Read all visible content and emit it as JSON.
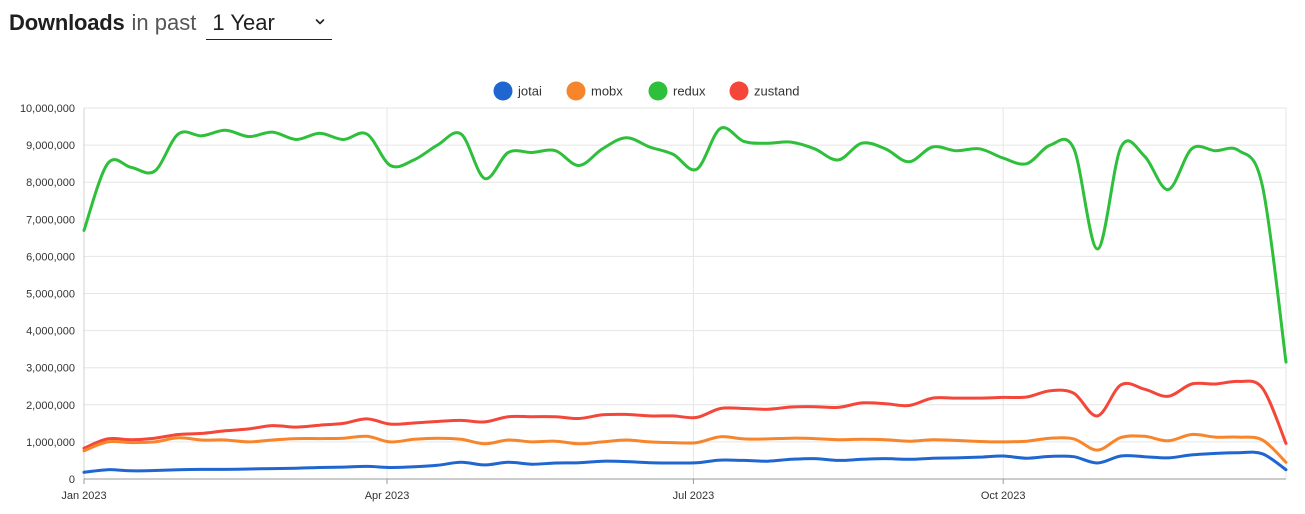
{
  "header": {
    "title": "Downloads",
    "subtitle": "in past",
    "range_value": "1 Year"
  },
  "chart_data": {
    "type": "line",
    "title": "",
    "xlabel": "",
    "ylabel": "",
    "ylim": [
      0,
      10000000
    ],
    "yticks": [
      "0",
      "1,000,000",
      "2,000,000",
      "3,000,000",
      "4,000,000",
      "5,000,000",
      "6,000,000",
      "7,000,000",
      "8,000,000",
      "9,000,000",
      "10,000,000"
    ],
    "xticks": [
      "Jan 2023",
      "Apr 2023",
      "Jul 2023",
      "Oct 2023"
    ],
    "legend_position": "top-center",
    "grid": true,
    "x": [
      "2023-01-01",
      "2023-01-08",
      "2023-01-15",
      "2023-01-22",
      "2023-01-29",
      "2023-02-05",
      "2023-02-12",
      "2023-02-19",
      "2023-02-26",
      "2023-03-05",
      "2023-03-12",
      "2023-03-19",
      "2023-03-26",
      "2023-04-02",
      "2023-04-09",
      "2023-04-16",
      "2023-04-23",
      "2023-04-30",
      "2023-05-07",
      "2023-05-14",
      "2023-05-21",
      "2023-05-28",
      "2023-06-04",
      "2023-06-11",
      "2023-06-18",
      "2023-06-25",
      "2023-07-02",
      "2023-07-09",
      "2023-07-16",
      "2023-07-23",
      "2023-07-30",
      "2023-08-06",
      "2023-08-13",
      "2023-08-20",
      "2023-08-27",
      "2023-09-03",
      "2023-09-10",
      "2023-09-17",
      "2023-09-24",
      "2023-10-01",
      "2023-10-08",
      "2023-10-15",
      "2023-10-22",
      "2023-10-29",
      "2023-11-05",
      "2023-11-12",
      "2023-11-19",
      "2023-11-26",
      "2023-12-03",
      "2023-12-10",
      "2023-12-17",
      "2023-12-24"
    ],
    "series": [
      {
        "name": "jotai",
        "color": "#1f66d1",
        "values": [
          180000,
          250000,
          220000,
          230000,
          250000,
          260000,
          260000,
          270000,
          280000,
          290000,
          310000,
          320000,
          340000,
          310000,
          330000,
          370000,
          450000,
          380000,
          450000,
          400000,
          430000,
          440000,
          480000,
          470000,
          440000,
          430000,
          440000,
          510000,
          500000,
          480000,
          530000,
          550000,
          500000,
          530000,
          550000,
          530000,
          560000,
          570000,
          590000,
          620000,
          560000,
          610000,
          600000,
          430000,
          620000,
          600000,
          570000,
          650000,
          690000,
          710000,
          680000,
          250000
        ]
      },
      {
        "name": "mobx",
        "color": "#f7852b",
        "values": [
          760000,
          1000000,
          980000,
          1000000,
          1110000,
          1050000,
          1050000,
          1000000,
          1050000,
          1090000,
          1090000,
          1100000,
          1150000,
          1000000,
          1070000,
          1100000,
          1070000,
          950000,
          1050000,
          1000000,
          1020000,
          950000,
          1000000,
          1050000,
          1000000,
          980000,
          980000,
          1140000,
          1080000,
          1080000,
          1100000,
          1090000,
          1060000,
          1070000,
          1060000,
          1020000,
          1060000,
          1040000,
          1010000,
          1000000,
          1020000,
          1100000,
          1080000,
          780000,
          1120000,
          1150000,
          1030000,
          1200000,
          1130000,
          1130000,
          1050000,
          450000
        ]
      },
      {
        "name": "redux",
        "color": "#2ebf3b",
        "values": [
          6700000,
          8500000,
          8400000,
          8300000,
          9300000,
          9250000,
          9400000,
          9230000,
          9350000,
          9150000,
          9320000,
          9150000,
          9300000,
          8450000,
          8600000,
          9000000,
          9300000,
          8100000,
          8800000,
          8800000,
          8850000,
          8450000,
          8900000,
          9200000,
          8950000,
          8750000,
          8350000,
          9450000,
          9100000,
          9050000,
          9080000,
          8900000,
          8600000,
          9050000,
          8900000,
          8550000,
          8950000,
          8850000,
          8900000,
          8650000,
          8500000,
          9000000,
          8900000,
          6200000,
          8950000,
          8700000,
          7800000,
          8900000,
          8850000,
          8850000,
          7900000,
          3150000
        ]
      },
      {
        "name": "zustand",
        "color": "#f4473a",
        "values": [
          830000,
          1080000,
          1060000,
          1100000,
          1200000,
          1230000,
          1300000,
          1350000,
          1440000,
          1400000,
          1450000,
          1500000,
          1620000,
          1480000,
          1510000,
          1550000,
          1580000,
          1540000,
          1680000,
          1680000,
          1680000,
          1630000,
          1730000,
          1740000,
          1700000,
          1700000,
          1660000,
          1900000,
          1900000,
          1880000,
          1940000,
          1950000,
          1930000,
          2050000,
          2030000,
          1980000,
          2180000,
          2180000,
          2180000,
          2200000,
          2210000,
          2380000,
          2310000,
          1700000,
          2540000,
          2420000,
          2230000,
          2560000,
          2560000,
          2630000,
          2450000,
          960000
        ]
      }
    ]
  }
}
